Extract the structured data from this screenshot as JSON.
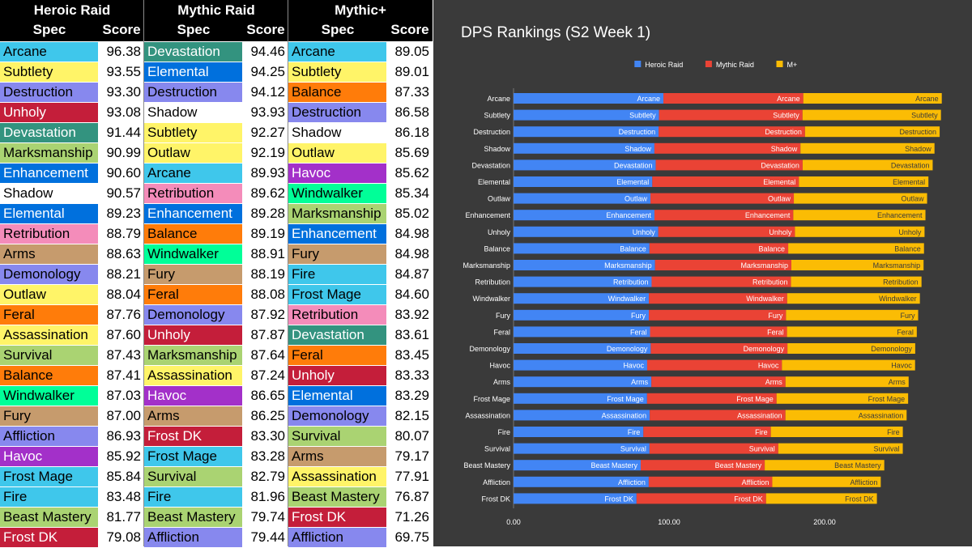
{
  "tables": [
    {
      "title": "Heroic Raid",
      "spec_header": "Spec",
      "score_header": "Score",
      "rows": [
        {
          "spec": "Arcane",
          "score": "96.38"
        },
        {
          "spec": "Subtlety",
          "score": "93.55"
        },
        {
          "spec": "Destruction",
          "score": "93.30"
        },
        {
          "spec": "Unholy",
          "score": "93.08"
        },
        {
          "spec": "Devastation",
          "score": "91.44"
        },
        {
          "spec": "Marksmanship",
          "score": "90.99"
        },
        {
          "spec": "Enhancement",
          "score": "90.60"
        },
        {
          "spec": "Shadow",
          "score": "90.57"
        },
        {
          "spec": "Elemental",
          "score": "89.23"
        },
        {
          "spec": "Retribution",
          "score": "88.79"
        },
        {
          "spec": "Arms",
          "score": "88.63"
        },
        {
          "spec": "Demonology",
          "score": "88.21"
        },
        {
          "spec": "Outlaw",
          "score": "88.04"
        },
        {
          "spec": "Feral",
          "score": "87.76"
        },
        {
          "spec": "Assassination",
          "score": "87.60"
        },
        {
          "spec": "Survival",
          "score": "87.43"
        },
        {
          "spec": "Balance",
          "score": "87.41"
        },
        {
          "spec": "Windwalker",
          "score": "87.03"
        },
        {
          "spec": "Fury",
          "score": "87.00"
        },
        {
          "spec": "Affliction",
          "score": "86.93"
        },
        {
          "spec": "Havoc",
          "score": "85.92"
        },
        {
          "spec": "Frost Mage",
          "score": "85.84"
        },
        {
          "spec": "Fire",
          "score": "83.48"
        },
        {
          "spec": "Beast Mastery",
          "score": "81.77"
        },
        {
          "spec": "Frost DK",
          "score": "79.08"
        }
      ]
    },
    {
      "title": "Mythic Raid",
      "spec_header": "Spec",
      "score_header": "Score",
      "rows": [
        {
          "spec": "Devastation",
          "score": "94.46"
        },
        {
          "spec": "Elemental",
          "score": "94.25"
        },
        {
          "spec": "Destruction",
          "score": "94.12"
        },
        {
          "spec": "Shadow",
          "score": "93.93"
        },
        {
          "spec": "Subtlety",
          "score": "92.27"
        },
        {
          "spec": "Outlaw",
          "score": "92.19"
        },
        {
          "spec": "Arcane",
          "score": "89.93"
        },
        {
          "spec": "Retribution",
          "score": "89.62"
        },
        {
          "spec": "Enhancement",
          "score": "89.28"
        },
        {
          "spec": "Balance",
          "score": "89.19"
        },
        {
          "spec": "Windwalker",
          "score": "88.91"
        },
        {
          "spec": "Fury",
          "score": "88.19"
        },
        {
          "spec": "Feral",
          "score": "88.08"
        },
        {
          "spec": "Demonology",
          "score": "87.92"
        },
        {
          "spec": "Unholy",
          "score": "87.87"
        },
        {
          "spec": "Marksmanship",
          "score": "87.64"
        },
        {
          "spec": "Assassination",
          "score": "87.24"
        },
        {
          "spec": "Havoc",
          "score": "86.65"
        },
        {
          "spec": "Arms",
          "score": "86.25"
        },
        {
          "spec": "Frost DK",
          "score": "83.30"
        },
        {
          "spec": "Frost Mage",
          "score": "83.28"
        },
        {
          "spec": "Survival",
          "score": "82.79"
        },
        {
          "spec": "Fire",
          "score": "81.96"
        },
        {
          "spec": "Beast Mastery",
          "score": "79.74"
        },
        {
          "spec": "Affliction",
          "score": "79.44"
        }
      ]
    },
    {
      "title": "Mythic+",
      "spec_header": "Spec",
      "score_header": "Score",
      "rows": [
        {
          "spec": "Arcane",
          "score": "89.05"
        },
        {
          "spec": "Subtlety",
          "score": "89.01"
        },
        {
          "spec": "Balance",
          "score": "87.33"
        },
        {
          "spec": "Destruction",
          "score": "86.58"
        },
        {
          "spec": "Shadow",
          "score": "86.18"
        },
        {
          "spec": "Outlaw",
          "score": "85.69"
        },
        {
          "spec": "Havoc",
          "score": "85.62"
        },
        {
          "spec": "Windwalker",
          "score": "85.34"
        },
        {
          "spec": "Marksmanship",
          "score": "85.02"
        },
        {
          "spec": "Enhancement",
          "score": "84.98"
        },
        {
          "spec": "Fury",
          "score": "84.98"
        },
        {
          "spec": "Fire",
          "score": "84.87"
        },
        {
          "spec": "Frost Mage",
          "score": "84.60"
        },
        {
          "spec": "Retribution",
          "score": "83.92"
        },
        {
          "spec": "Devastation",
          "score": "83.61"
        },
        {
          "spec": "Feral",
          "score": "83.45"
        },
        {
          "spec": "Unholy",
          "score": "83.33"
        },
        {
          "spec": "Elemental",
          "score": "83.29"
        },
        {
          "spec": "Demonology",
          "score": "82.15"
        },
        {
          "spec": "Survival",
          "score": "80.07"
        },
        {
          "spec": "Arms",
          "score": "79.17"
        },
        {
          "spec": "Assassination",
          "score": "77.91"
        },
        {
          "spec": "Beast Mastery",
          "score": "76.87"
        },
        {
          "spec": "Frost DK",
          "score": "71.26"
        },
        {
          "spec": "Affliction",
          "score": "69.75"
        }
      ]
    }
  ],
  "spec_colors": {
    "Arcane": "#3fc7eb",
    "Fire": "#3fc7eb",
    "Frost Mage": "#3fc7eb",
    "Subtlety": "#fff468",
    "Outlaw": "#fff468",
    "Assassination": "#fff468",
    "Destruction": "#8788ee",
    "Affliction": "#8788ee",
    "Demonology": "#8788ee",
    "Unholy": "#c41e3a",
    "Frost DK": "#c41e3a",
    "Devastation": "#33937f",
    "Marksmanship": "#aad372",
    "Survival": "#aad372",
    "Beast Mastery": "#aad372",
    "Enhancement": "#0070dd",
    "Elemental": "#0070dd",
    "Shadow": "#ffffff",
    "Retribution": "#f48cba",
    "Arms": "#c69b6d",
    "Fury": "#c69b6d",
    "Feral": "#ff7c0a",
    "Balance": "#ff7c0a",
    "Windwalker": "#00ff98",
    "Havoc": "#a330c9"
  },
  "white_text_specs": [
    "Unholy",
    "Frost DK",
    "Devastation",
    "Enhancement",
    "Elemental",
    "Havoc"
  ],
  "chart_data": {
    "type": "bar",
    "orientation": "horizontal-stacked",
    "title": "DPS Rankings (S2 Week 1)",
    "legend_position": "top",
    "xlim": [
      0,
      300
    ],
    "x_ticks": [
      "0.00",
      "100.00",
      "200.00"
    ],
    "categories": [
      "Arcane",
      "Subtlety",
      "Destruction",
      "Shadow",
      "Devastation",
      "Elemental",
      "Outlaw",
      "Enhancement",
      "Unholy",
      "Balance",
      "Marksmanship",
      "Retribution",
      "Windwalker",
      "Fury",
      "Feral",
      "Demonology",
      "Havoc",
      "Arms",
      "Frost Mage",
      "Assassination",
      "Fire",
      "Survival",
      "Beast Mastery",
      "Affliction",
      "Frost DK"
    ],
    "series": [
      {
        "name": "Heroic Raid",
        "color": "#4285f4",
        "values": [
          96.38,
          93.55,
          93.3,
          90.57,
          91.44,
          89.23,
          88.04,
          90.6,
          93.08,
          87.41,
          90.99,
          88.79,
          87.03,
          87.0,
          87.76,
          88.21,
          85.92,
          88.63,
          85.84,
          87.6,
          83.48,
          87.43,
          81.77,
          86.93,
          79.08
        ]
      },
      {
        "name": "Mythic Raid",
        "color": "#ea4335",
        "values": [
          89.93,
          92.27,
          94.12,
          93.93,
          94.46,
          94.25,
          92.19,
          89.28,
          87.87,
          89.19,
          87.64,
          89.62,
          88.91,
          88.19,
          88.08,
          87.92,
          86.65,
          86.25,
          83.28,
          87.24,
          81.96,
          82.79,
          79.74,
          79.44,
          83.3
        ]
      },
      {
        "name": "M+",
        "color": "#fbbc04",
        "values": [
          89.05,
          89.01,
          86.58,
          86.18,
          83.61,
          83.29,
          85.69,
          84.98,
          83.33,
          87.33,
          85.02,
          83.92,
          85.34,
          84.98,
          83.45,
          82.15,
          85.62,
          79.17,
          84.6,
          77.91,
          84.87,
          80.07,
          76.87,
          69.75,
          71.26
        ]
      }
    ]
  }
}
